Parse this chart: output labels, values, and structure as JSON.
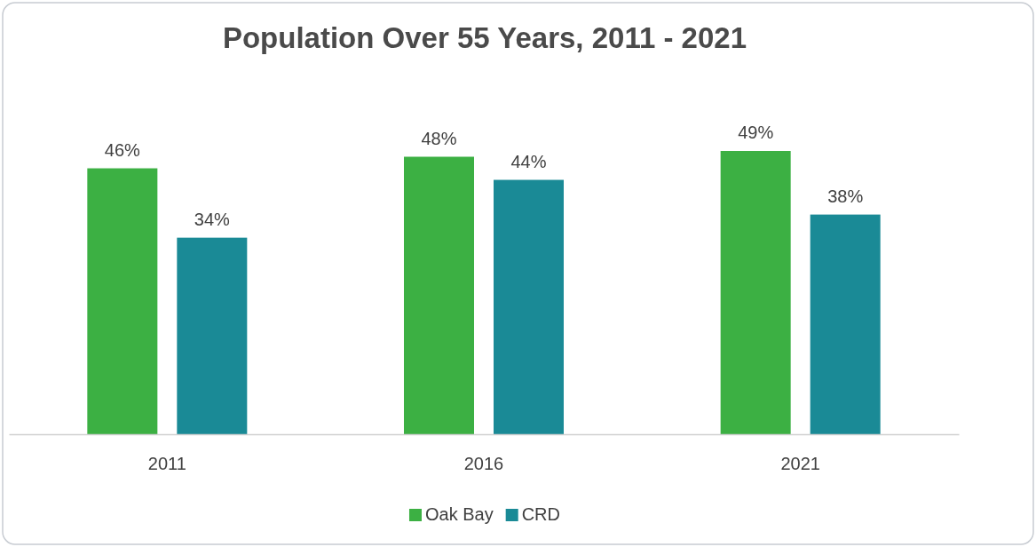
{
  "chart_data": {
    "type": "bar",
    "title": "Population Over 55 Years, 2011 - 2021",
    "categories": [
      "2011",
      "2016",
      "2021"
    ],
    "series": [
      {
        "name": "Oak Bay",
        "color": "#3cb043",
        "values": [
          46,
          48,
          49
        ],
        "value_labels": [
          "46%",
          "48%",
          "49%"
        ]
      },
      {
        "name": "CRD",
        "color": "#1a8a96",
        "values": [
          34,
          44,
          38
        ],
        "value_labels": [
          "34%",
          "44%",
          "38%"
        ]
      }
    ],
    "legend": "bottom"
  }
}
